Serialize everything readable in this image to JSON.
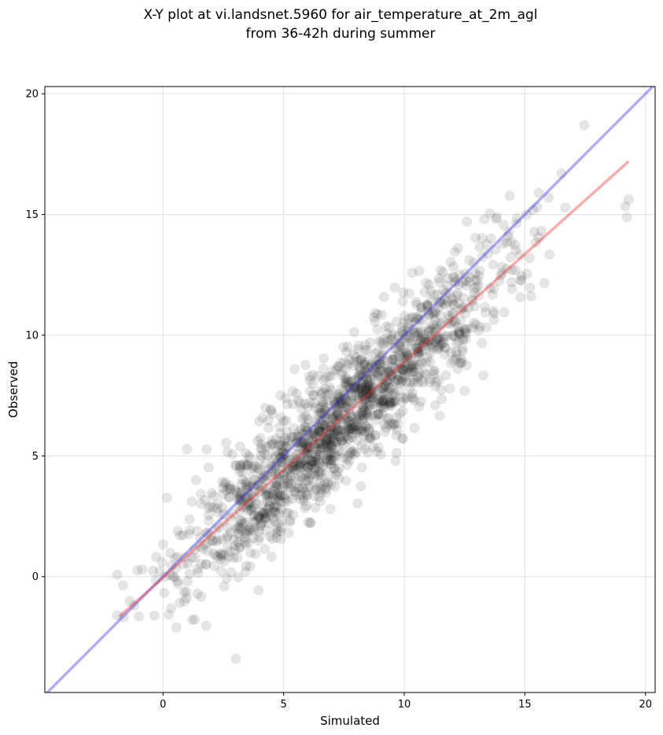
{
  "chart_data": {
    "type": "scatter",
    "title_lines": [
      "X-Y plot at vi.landsnet.5960 for air_temperature_at_2m_agl",
      "from 36-42h during summer"
    ],
    "xlabel": "Simulated",
    "ylabel": "Observed",
    "xlim": [
      -4.9,
      20.4
    ],
    "ylim": [
      -4.8,
      20.3
    ],
    "xticks": [
      0,
      5,
      10,
      15,
      20
    ],
    "yticks": [
      0,
      5,
      10,
      15,
      20
    ],
    "grid": true,
    "colors": {
      "points": "#000000",
      "identity_line": "#3333ee",
      "fit_line": "#ee3333",
      "grid": "#e6e6e6"
    },
    "identity_line": {
      "x": [
        -4.9,
        20.4
      ],
      "y": [
        -4.9,
        20.4
      ]
    },
    "fit_line": {
      "x": [
        -1.8,
        19.3
      ],
      "y": [
        -1.65,
        17.2
      ]
    },
    "points": {
      "count": 1600,
      "seed": 5960,
      "x_mean": 7.4,
      "x_std": 3.4,
      "x_min": -1.9,
      "x_max": 19.3,
      "fit_intercept": -0.1,
      "fit_slope": 0.9,
      "residual_std": 1.3,
      "y_min": -3.7,
      "y_max": 18.7
    }
  }
}
